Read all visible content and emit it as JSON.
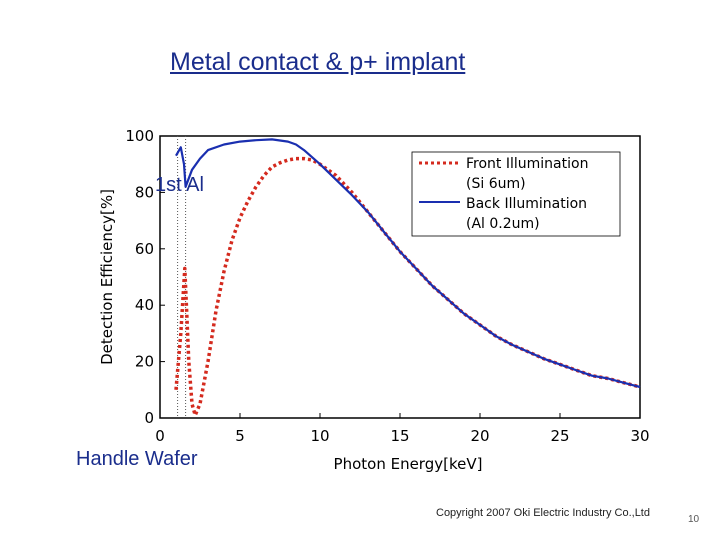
{
  "slide": {
    "title": "Metal contact & p+ implant",
    "annotation_top": "1st Al",
    "annotation_bottom": "Handle Wafer",
    "copyright": "Copyright 2007 Oki Electric Industry Co.,Ltd",
    "page_number": "10"
  },
  "chart_data": {
    "type": "line",
    "xlabel": "Photon Energy[keV]",
    "ylabel": "Detection Efficiency[%]",
    "xlim": [
      0,
      30
    ],
    "ylim": [
      0,
      100
    ],
    "xticks": [
      "0",
      "5",
      "10",
      "15",
      "20",
      "25",
      "30"
    ],
    "yticks": [
      "0",
      "20",
      "40",
      "60",
      "80",
      "100"
    ],
    "reference_lines_x": [
      1.1,
      1.6
    ],
    "series": [
      {
        "name": "Front Illumination (Si 6um)",
        "legend_lines": [
          "Front Illumination",
          "(Si 6um)"
        ],
        "style": "dotted",
        "color": "#d42a1e",
        "points": [
          [
            1.0,
            10
          ],
          [
            1.3,
            30
          ],
          [
            1.55,
            53
          ],
          [
            1.65,
            40
          ],
          [
            1.8,
            20
          ],
          [
            2.0,
            5
          ],
          [
            2.2,
            1
          ],
          [
            2.5,
            5
          ],
          [
            3.0,
            20
          ],
          [
            3.5,
            38
          ],
          [
            4.0,
            52
          ],
          [
            4.5,
            63
          ],
          [
            5.0,
            71
          ],
          [
            5.5,
            77
          ],
          [
            6.0,
            82
          ],
          [
            6.5,
            86
          ],
          [
            7.0,
            89
          ],
          [
            7.5,
            90.5
          ],
          [
            8.0,
            91.5
          ],
          [
            8.5,
            92
          ],
          [
            9.0,
            92
          ],
          [
            9.5,
            91.5
          ],
          [
            10.0,
            90
          ],
          [
            11.0,
            86
          ],
          [
            12.0,
            80
          ],
          [
            13.0,
            73
          ],
          [
            14.0,
            66
          ],
          [
            15.0,
            59
          ],
          [
            16.0,
            53
          ],
          [
            17.0,
            47
          ],
          [
            18.0,
            42
          ],
          [
            19.0,
            37
          ],
          [
            20.0,
            33
          ],
          [
            21.0,
            29
          ],
          [
            22.0,
            26
          ],
          [
            23.0,
            23.5
          ],
          [
            24.0,
            21
          ],
          [
            25.0,
            19
          ],
          [
            26.0,
            17
          ],
          [
            27.0,
            15
          ],
          [
            28.0,
            14
          ],
          [
            29.0,
            12.5
          ],
          [
            30.0,
            11
          ]
        ]
      },
      {
        "name": "Back Illumination (Al 0.2um)",
        "legend_lines": [
          "Back Illumination",
          "(Al 0.2um)"
        ],
        "style": "solid",
        "color": "#1a2fb0",
        "points": [
          [
            1.0,
            93
          ],
          [
            1.3,
            96
          ],
          [
            1.5,
            90
          ],
          [
            1.6,
            82
          ],
          [
            1.8,
            85
          ],
          [
            2.0,
            88
          ],
          [
            2.5,
            92
          ],
          [
            3.0,
            95
          ],
          [
            4.0,
            97
          ],
          [
            5.0,
            98
          ],
          [
            6.0,
            98.5
          ],
          [
            7.0,
            98.8
          ],
          [
            8.0,
            98
          ],
          [
            8.5,
            97
          ],
          [
            9.0,
            95
          ],
          [
            10.0,
            90
          ],
          [
            11.0,
            84.5
          ],
          [
            12.0,
            79
          ],
          [
            13.0,
            73
          ],
          [
            14.0,
            66
          ],
          [
            15.0,
            59
          ],
          [
            16.0,
            53
          ],
          [
            17.0,
            47
          ],
          [
            18.0,
            42
          ],
          [
            19.0,
            37
          ],
          [
            20.0,
            33
          ],
          [
            21.0,
            29
          ],
          [
            22.0,
            26
          ],
          [
            23.0,
            23.5
          ],
          [
            24.0,
            21
          ],
          [
            25.0,
            19
          ],
          [
            26.0,
            17
          ],
          [
            27.0,
            15
          ],
          [
            28.0,
            14
          ],
          [
            29.0,
            12.5
          ],
          [
            30.0,
            11
          ]
        ]
      }
    ]
  }
}
